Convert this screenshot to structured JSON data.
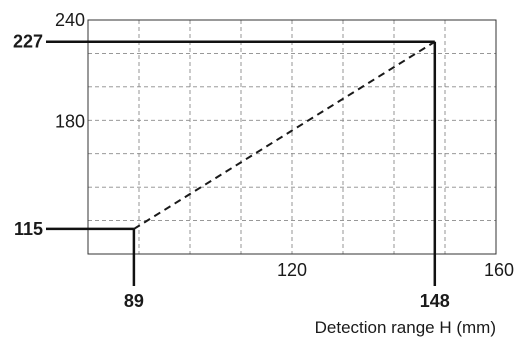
{
  "chart_data": {
    "type": "line",
    "title": "",
    "xlabel": "Detection range H (mm)",
    "ylabel": "",
    "xlim": [
      80,
      160
    ],
    "ylim": [
      100,
      240
    ],
    "grid": true,
    "x_ticks": [
      {
        "value": 120,
        "label": "120"
      },
      {
        "value": 160,
        "label": "160"
      }
    ],
    "y_ticks": [
      {
        "value": 180,
        "label": "180"
      },
      {
        "value": 240,
        "label": "240"
      }
    ],
    "series": [
      {
        "x": [
          89,
          148
        ],
        "y": [
          115,
          227
        ],
        "style": "dashed"
      }
    ],
    "callouts": [
      {
        "x": 89,
        "y": 115,
        "x_label": "89",
        "y_label": "115"
      },
      {
        "x": 148,
        "y": 227,
        "x_label": "148",
        "y_label": "227"
      }
    ]
  }
}
